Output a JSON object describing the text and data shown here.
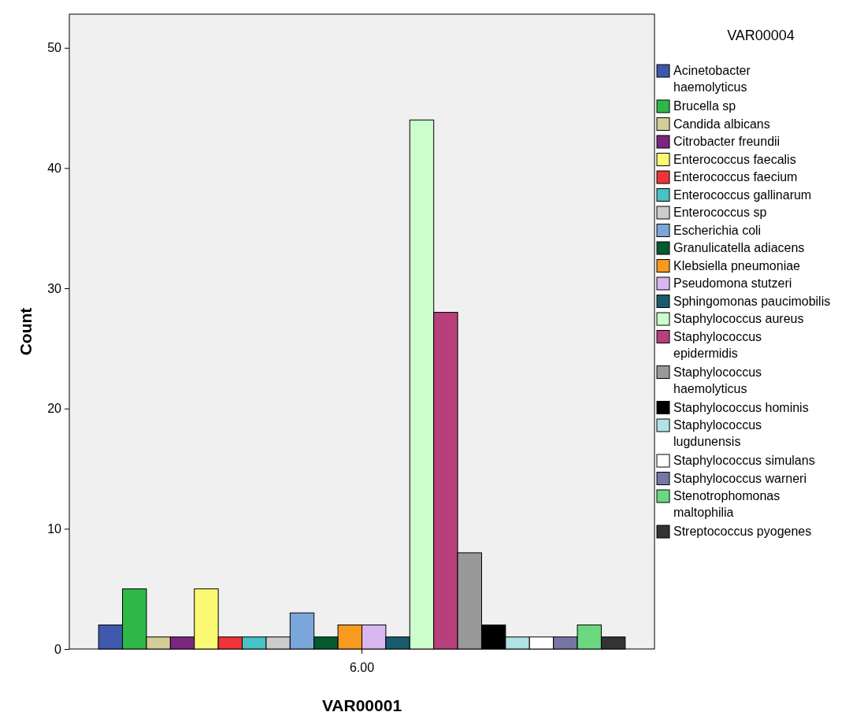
{
  "chart_data": {
    "type": "bar",
    "categories": [
      null
    ],
    "annotations": [
      "6.00"
    ],
    "xlabel": "VAR00001",
    "ylabel": "Count",
    "legend_title": "VAR00004",
    "legend": "right",
    "grid": false,
    "ylim": [
      0,
      52.8
    ],
    "yticks": [
      0,
      10,
      20,
      30,
      40,
      50
    ],
    "series": [
      {
        "name": "Acinetobacter haemolyticus",
        "color": "#3e58ac",
        "values": [
          2
        ]
      },
      {
        "name": "Brucella sp",
        "color": "#2eb848",
        "values": [
          5
        ]
      },
      {
        "name": "Candida albicans",
        "color": "#d3ce97",
        "values": [
          1
        ]
      },
      {
        "name": "Citrobacter freundii",
        "color": "#7b277f",
        "values": [
          1
        ]
      },
      {
        "name": "Enterococcus faecalis",
        "color": "#fbf873",
        "values": [
          5
        ]
      },
      {
        "name": "Enterococcus faecium",
        "color": "#ef3338",
        "values": [
          1
        ]
      },
      {
        "name": "Enterococcus gallinarum",
        "color": "#48c2c5",
        "values": [
          1
        ]
      },
      {
        "name": "Enterococcus sp",
        "color": "#cccccc",
        "values": [
          1
        ]
      },
      {
        "name": "Escherichia coli",
        "color": "#7ba6d9",
        "values": [
          3
        ]
      },
      {
        "name": "Granulicatella adiacens",
        "color": "#045a2f",
        "values": [
          1
        ]
      },
      {
        "name": "Klebsiella pneumoniae",
        "color": "#f79a20",
        "values": [
          2
        ]
      },
      {
        "name": "Pseudomona stutzeri",
        "color": "#d8b6ef",
        "values": [
          2
        ]
      },
      {
        "name": "Sphingomonas paucimobilis",
        "color": "#195c6e",
        "values": [
          1
        ]
      },
      {
        "name": "Staphylococcus aureus",
        "color": "#ccffcc",
        "values": [
          44
        ]
      },
      {
        "name": "Staphylococcus epidermidis",
        "color": "#b73f7b",
        "values": [
          28
        ]
      },
      {
        "name": "Staphylococcus haemolyticus",
        "color": "#999999",
        "values": [
          8
        ]
      },
      {
        "name": "Staphylococcus hominis",
        "color": "#000000",
        "values": [
          2
        ]
      },
      {
        "name": "Staphylococcus lugdunensis",
        "color": "#b0e2e6",
        "values": [
          1
        ]
      },
      {
        "name": "Staphylococcus simulans",
        "color": "#ffffff",
        "values": [
          1
        ]
      },
      {
        "name": "Staphylococcus warneri",
        "color": "#7676a5",
        "values": [
          1
        ]
      },
      {
        "name": "Stenotrophomonas maltophilia",
        "color": "#6bd880",
        "values": [
          2
        ]
      },
      {
        "name": "Streptococcus pyogenes",
        "color": "#333333",
        "values": [
          1
        ]
      }
    ]
  }
}
